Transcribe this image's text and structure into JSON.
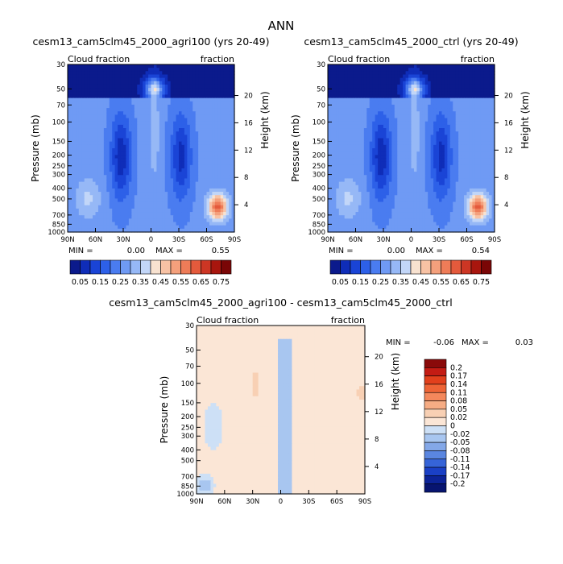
{
  "figure": {
    "title": "ANN"
  },
  "chart_data": [
    {
      "type": "heatmap",
      "id": "agri100",
      "title": "cesm13_cam5clm45_2000_agri100 (yrs 20-49)",
      "left_label": "Cloud fraction",
      "right_label": "fraction",
      "ylabel": "Pressure (mb)",
      "y2label": "Height (km)",
      "x_ticks": [
        "90N",
        "60N",
        "30N",
        "0",
        "30S",
        "60S",
        "90S"
      ],
      "y_ticks": [
        "30",
        "50",
        "70",
        "100",
        "150",
        "200",
        "250",
        "300",
        "400",
        "500",
        "700",
        "850",
        "1000"
      ],
      "y2_ticks": [
        "20",
        "16",
        "12",
        "8",
        "4"
      ],
      "min_label": "MIN =",
      "min_value": "0.00",
      "max_label": "MAX =",
      "max_value": "0.55",
      "ylim": [
        30,
        1000
      ],
      "colorbar_orientation": "horizontal",
      "colorbar_labels": [
        "0.05",
        "0.15",
        "0.25",
        "0.35",
        "0.45",
        "0.55",
        "0.65",
        "0.75"
      ]
    },
    {
      "type": "heatmap",
      "id": "ctrl",
      "title": "cesm13_cam5clm45_2000_ctrl (yrs 20-49)",
      "left_label": "Cloud fraction",
      "right_label": "fraction",
      "ylabel": "Pressure (mb)",
      "y2label": "Height (km)",
      "x_ticks": [
        "90N",
        "60N",
        "30N",
        "0",
        "30S",
        "60S",
        "90S"
      ],
      "y_ticks": [
        "30",
        "50",
        "70",
        "100",
        "150",
        "200",
        "250",
        "300",
        "400",
        "500",
        "700",
        "850",
        "1000"
      ],
      "y2_ticks": [
        "20",
        "16",
        "12",
        "8",
        "4"
      ],
      "min_label": "MIN =",
      "min_value": "0.00",
      "max_label": "MAX =",
      "max_value": "0.54",
      "ylim": [
        30,
        1000
      ],
      "colorbar_orientation": "horizontal",
      "colorbar_labels": [
        "0.05",
        "0.15",
        "0.25",
        "0.35",
        "0.45",
        "0.55",
        "0.65",
        "0.75"
      ]
    },
    {
      "type": "heatmap",
      "id": "diff",
      "title": "cesm13_cam5clm45_2000_agri100 - cesm13_cam5clm45_2000_ctrl",
      "left_label": "Cloud fraction",
      "right_label": "fraction",
      "ylabel": "Pressure (mb)",
      "y2label": "Height (km)",
      "x_ticks": [
        "90N",
        "60N",
        "30N",
        "0",
        "30S",
        "60S",
        "90S"
      ],
      "y_ticks": [
        "30",
        "50",
        "70",
        "100",
        "150",
        "200",
        "250",
        "300",
        "400",
        "500",
        "700",
        "850",
        "1000"
      ],
      "y2_ticks": [
        "20",
        "16",
        "12",
        "8",
        "4"
      ],
      "min_label": "MIN =",
      "min_value": "-0.06",
      "max_label": "MAX =",
      "max_value": "0.03",
      "ylim": [
        30,
        1000
      ],
      "colorbar_orientation": "vertical",
      "colorbar_labels": [
        "0.2",
        "0.17",
        "0.14",
        "0.11",
        "0.08",
        "0.05",
        "0.02",
        "0",
        "-0.02",
        "-0.05",
        "-0.08",
        "-0.11",
        "-0.14",
        "-0.17",
        "-0.2"
      ]
    }
  ],
  "palettes": {
    "absolute": [
      "#0b1a8c",
      "#0f2db8",
      "#1a44d6",
      "#2d60e8",
      "#4a7cf0",
      "#6f9af4",
      "#96b8f6",
      "#c2d6f8",
      "#f8e2d0",
      "#f8c2a4",
      "#f4a07c",
      "#ee7c58",
      "#e45a3c",
      "#cc3624",
      "#a8160e",
      "#7a0606"
    ],
    "difference": [
      "#8a0a0a",
      "#c41c14",
      "#e2401c",
      "#ee6436",
      "#f4885c",
      "#f6ac84",
      "#f8d0b4",
      "#fbe6d6",
      "#cde0f6",
      "#a8c6f0",
      "#84a8e8",
      "#5a86e0",
      "#3664d8",
      "#1a40c6",
      "#0c2398",
      "#071470"
    ]
  }
}
